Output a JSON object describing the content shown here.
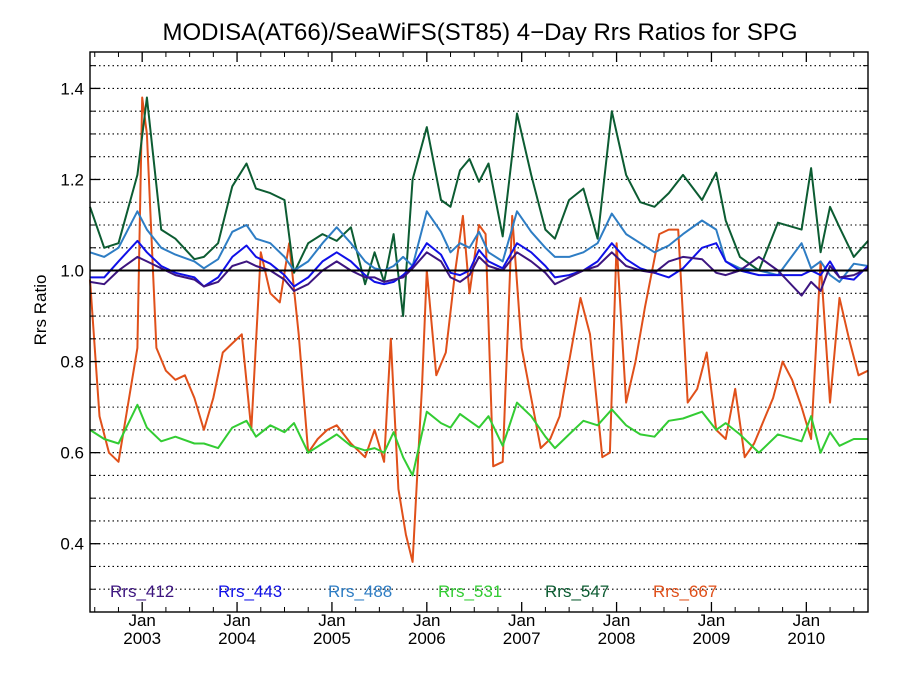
{
  "chart_data": {
    "type": "line",
    "title": "MODISA(AT66)/SeaWiFS(ST85) 4−Day Rrs Ratios for SPG",
    "xlabel": "",
    "ylabel": "Rrs Ratio",
    "xlim": [
      2002.45,
      2010.65
    ],
    "ylim": [
      0.25,
      1.48
    ],
    "y_ticks": [
      0.4,
      0.6,
      0.8,
      1.0,
      1.2,
      1.4
    ],
    "y_tick_labels": [
      "0.4",
      "0.6",
      "0.8",
      "1.0",
      "1.2",
      "1.4"
    ],
    "y_gridlines": [
      0.3,
      0.35,
      0.4,
      0.45,
      0.5,
      0.55,
      0.6,
      0.65,
      0.7,
      0.75,
      0.8,
      0.85,
      0.9,
      0.95,
      1.0,
      1.05,
      1.1,
      1.15,
      1.2,
      1.25,
      1.3,
      1.35,
      1.4,
      1.45
    ],
    "grid": "horizontal dotted",
    "reference_line": 1.0,
    "x_ticks": [
      {
        "x": 2003.0,
        "month": "Jan",
        "year": "2003"
      },
      {
        "x": 2004.0,
        "month": "Jan",
        "year": "2004"
      },
      {
        "x": 2005.0,
        "month": "Jan",
        "year": "2005"
      },
      {
        "x": 2006.0,
        "month": "Jan",
        "year": "2006"
      },
      {
        "x": 2007.0,
        "month": "Jan",
        "year": "2007"
      },
      {
        "x": 2008.0,
        "month": "Jan",
        "year": "2008"
      },
      {
        "x": 2009.0,
        "month": "Jan",
        "year": "2009"
      },
      {
        "x": 2010.0,
        "month": "Jan",
        "year": "2010"
      }
    ],
    "x_minor_ticks": [
      2002.5,
      2002.75,
      2003.25,
      2003.5,
      2003.75,
      2004.25,
      2004.5,
      2004.75,
      2005.25,
      2005.5,
      2005.75,
      2006.25,
      2006.5,
      2006.75,
      2007.25,
      2007.5,
      2007.75,
      2008.25,
      2008.5,
      2008.75,
      2009.25,
      2009.5,
      2009.75,
      2010.25,
      2010.5
    ],
    "legend_position": "bottom",
    "series": [
      {
        "name": "Rrs_412",
        "color": "#3d1580",
        "x": [
          2002.45,
          2002.6,
          2002.75,
          2002.95,
          2003.05,
          2003.2,
          2003.35,
          2003.55,
          2003.65,
          2003.8,
          2003.95,
          2004.1,
          2004.2,
          2004.35,
          2004.5,
          2004.6,
          2004.75,
          2004.9,
          2005.05,
          2005.2,
          2005.35,
          2005.45,
          2005.55,
          2005.65,
          2005.75,
          2005.85,
          2006.0,
          2006.15,
          2006.25,
          2006.35,
          2006.45,
          2006.55,
          2006.65,
          2006.8,
          2006.95,
          2007.1,
          2007.25,
          2007.35,
          2007.5,
          2007.65,
          2007.8,
          2007.95,
          2008.1,
          2008.25,
          2008.4,
          2008.55,
          2008.7,
          2008.9,
          2009.05,
          2009.15,
          2009.3,
          2009.5,
          2009.7,
          2009.95,
          2010.05,
          2010.15,
          2010.25,
          2010.35,
          2010.5,
          2010.65
        ],
        "values": [
          0.975,
          0.97,
          1.0,
          1.03,
          1.02,
          1.005,
          0.99,
          0.98,
          0.965,
          0.975,
          1.01,
          1.02,
          1.01,
          1.0,
          0.98,
          0.955,
          0.97,
          1.0,
          1.02,
          1.0,
          0.985,
          0.985,
          0.975,
          0.98,
          0.985,
          1.005,
          1.04,
          1.02,
          0.985,
          0.975,
          0.99,
          1.03,
          1.01,
          1.0,
          1.04,
          1.02,
          0.995,
          0.97,
          0.985,
          1.0,
          1.01,
          1.04,
          1.01,
          1.0,
          0.995,
          1.02,
          1.03,
          1.025,
          0.995,
          0.99,
          1.0,
          1.03,
          1.0,
          0.945,
          0.975,
          0.955,
          1.01,
          0.985,
          0.99,
          1.005
        ]
      },
      {
        "name": "Rrs_443",
        "color": "#1010e8",
        "x": [
          2002.45,
          2002.6,
          2002.75,
          2002.95,
          2003.05,
          2003.2,
          2003.35,
          2003.55,
          2003.65,
          2003.8,
          2003.95,
          2004.1,
          2004.2,
          2004.35,
          2004.5,
          2004.6,
          2004.75,
          2004.9,
          2005.05,
          2005.2,
          2005.35,
          2005.45,
          2005.55,
          2005.65,
          2005.75,
          2005.85,
          2006.0,
          2006.15,
          2006.25,
          2006.35,
          2006.45,
          2006.55,
          2006.65,
          2006.8,
          2006.95,
          2007.1,
          2007.25,
          2007.35,
          2007.5,
          2007.65,
          2007.8,
          2007.95,
          2008.1,
          2008.25,
          2008.4,
          2008.55,
          2008.7,
          2008.9,
          2009.05,
          2009.15,
          2009.3,
          2009.5,
          2009.7,
          2009.95,
          2010.05,
          2010.15,
          2010.25,
          2010.35,
          2010.5,
          2010.65
        ],
        "values": [
          0.985,
          0.985,
          1.02,
          1.065,
          1.04,
          1.01,
          0.995,
          0.985,
          0.965,
          0.985,
          1.03,
          1.055,
          1.03,
          1.015,
          0.99,
          0.965,
          0.985,
          1.02,
          1.04,
          1.02,
          0.99,
          0.975,
          0.97,
          0.975,
          0.99,
          1.01,
          1.06,
          1.035,
          0.995,
          0.99,
          1.0,
          1.045,
          1.02,
          1.005,
          1.06,
          1.04,
          1.01,
          0.985,
          0.99,
          1.0,
          1.02,
          1.06,
          1.025,
          1.005,
          0.995,
          0.985,
          1.005,
          1.05,
          1.06,
          1.02,
          1.0,
          0.99,
          0.99,
          0.99,
          1.0,
          0.99,
          1.02,
          0.985,
          0.98,
          1.01
        ]
      },
      {
        "name": "Rrs_488",
        "color": "#2e7dc4",
        "x": [
          2002.45,
          2002.6,
          2002.75,
          2002.95,
          2003.05,
          2003.2,
          2003.35,
          2003.55,
          2003.65,
          2003.8,
          2003.95,
          2004.1,
          2004.2,
          2004.35,
          2004.5,
          2004.6,
          2004.75,
          2004.9,
          2005.05,
          2005.2,
          2005.35,
          2005.45,
          2005.55,
          2005.65,
          2005.75,
          2005.85,
          2006.0,
          2006.15,
          2006.25,
          2006.35,
          2006.45,
          2006.55,
          2006.65,
          2006.8,
          2006.95,
          2007.1,
          2007.25,
          2007.35,
          2007.5,
          2007.65,
          2007.8,
          2007.95,
          2008.1,
          2008.25,
          2008.4,
          2008.55,
          2008.7,
          2008.9,
          2009.05,
          2009.15,
          2009.3,
          2009.5,
          2009.7,
          2009.95,
          2010.05,
          2010.15,
          2010.25,
          2010.35,
          2010.5,
          2010.65
        ],
        "values": [
          1.04,
          1.03,
          1.05,
          1.13,
          1.09,
          1.05,
          1.035,
          1.02,
          1.005,
          1.025,
          1.085,
          1.1,
          1.07,
          1.06,
          1.03,
          1.0,
          1.02,
          1.06,
          1.095,
          1.06,
          1.02,
          1.005,
          1.0,
          1.01,
          1.03,
          1.01,
          1.13,
          1.085,
          1.04,
          1.06,
          1.05,
          1.085,
          1.04,
          1.02,
          1.13,
          1.085,
          1.05,
          1.03,
          1.03,
          1.04,
          1.06,
          1.125,
          1.08,
          1.06,
          1.04,
          1.055,
          1.08,
          1.11,
          1.09,
          1.02,
          1.005,
          1.0,
          0.99,
          1.06,
          1.005,
          1.02,
          0.99,
          0.975,
          1.015,
          1.01
        ]
      },
      {
        "name": "Rrs_531",
        "color": "#33cc33",
        "x": [
          2002.45,
          2002.6,
          2002.75,
          2002.95,
          2003.05,
          2003.2,
          2003.35,
          2003.55,
          2003.65,
          2003.8,
          2003.95,
          2004.1,
          2004.2,
          2004.35,
          2004.5,
          2004.6,
          2004.75,
          2004.9,
          2005.05,
          2005.2,
          2005.35,
          2005.45,
          2005.55,
          2005.65,
          2005.75,
          2005.85,
          2006.0,
          2006.15,
          2006.25,
          2006.35,
          2006.45,
          2006.55,
          2006.65,
          2006.8,
          2006.95,
          2007.1,
          2007.25,
          2007.35,
          2007.5,
          2007.65,
          2007.8,
          2007.95,
          2008.1,
          2008.25,
          2008.4,
          2008.55,
          2008.7,
          2008.9,
          2009.05,
          2009.15,
          2009.3,
          2009.5,
          2009.7,
          2009.95,
          2010.05,
          2010.15,
          2010.25,
          2010.35,
          2010.5,
          2010.65
        ],
        "values": [
          0.65,
          0.63,
          0.62,
          0.705,
          0.655,
          0.625,
          0.635,
          0.62,
          0.62,
          0.61,
          0.655,
          0.67,
          0.635,
          0.66,
          0.645,
          0.665,
          0.6,
          0.62,
          0.64,
          0.615,
          0.605,
          0.61,
          0.6,
          0.645,
          0.59,
          0.55,
          0.69,
          0.665,
          0.655,
          0.685,
          0.67,
          0.655,
          0.68,
          0.615,
          0.71,
          0.68,
          0.635,
          0.61,
          0.64,
          0.67,
          0.66,
          0.695,
          0.66,
          0.64,
          0.635,
          0.67,
          0.675,
          0.69,
          0.65,
          0.665,
          0.64,
          0.6,
          0.64,
          0.625,
          0.68,
          0.6,
          0.645,
          0.615,
          0.63,
          0.63
        ]
      },
      {
        "name": "Rrs_547",
        "color": "#0c5c32",
        "x": [
          2002.45,
          2002.6,
          2002.75,
          2002.95,
          2003.05,
          2003.2,
          2003.35,
          2003.55,
          2003.65,
          2003.8,
          2003.95,
          2004.1,
          2004.2,
          2004.35,
          2004.5,
          2004.6,
          2004.75,
          2004.9,
          2005.05,
          2005.2,
          2005.35,
          2005.45,
          2005.55,
          2005.65,
          2005.75,
          2005.85,
          2006.0,
          2006.15,
          2006.25,
          2006.35,
          2006.45,
          2006.55,
          2006.65,
          2006.8,
          2006.95,
          2007.1,
          2007.25,
          2007.35,
          2007.5,
          2007.65,
          2007.8,
          2007.95,
          2008.1,
          2008.25,
          2008.4,
          2008.55,
          2008.7,
          2008.9,
          2009.05,
          2009.15,
          2009.3,
          2009.5,
          2009.7,
          2009.95,
          2010.05,
          2010.15,
          2010.25,
          2010.35,
          2010.5,
          2010.65
        ],
        "values": [
          1.14,
          1.05,
          1.06,
          1.21,
          1.38,
          1.09,
          1.07,
          1.025,
          1.03,
          1.06,
          1.185,
          1.235,
          1.18,
          1.17,
          1.155,
          0.995,
          1.06,
          1.08,
          1.065,
          1.095,
          0.97,
          1.04,
          0.975,
          1.08,
          0.9,
          1.2,
          1.315,
          1.155,
          1.14,
          1.22,
          1.245,
          1.195,
          1.235,
          1.075,
          1.345,
          1.21,
          1.09,
          1.07,
          1.155,
          1.18,
          1.07,
          1.35,
          1.21,
          1.15,
          1.14,
          1.17,
          1.21,
          1.155,
          1.215,
          1.11,
          1.03,
          1.0,
          1.105,
          1.09,
          1.225,
          1.04,
          1.14,
          1.095,
          1.03,
          1.065
        ]
      },
      {
        "name": "Rrs_667",
        "color": "#e0501a",
        "x": [
          2002.45,
          2002.55,
          2002.65,
          2002.75,
          2002.95,
          2003.0,
          2003.05,
          2003.15,
          2003.25,
          2003.35,
          2003.45,
          2003.55,
          2003.65,
          2003.75,
          2003.85,
          2003.95,
          2004.05,
          2004.15,
          2004.25,
          2004.35,
          2004.45,
          2004.55,
          2004.65,
          2004.75,
          2004.85,
          2004.95,
          2005.05,
          2005.2,
          2005.35,
          2005.45,
          2005.55,
          2005.62,
          2005.7,
          2005.78,
          2005.85,
          2005.95,
          2006.0,
          2006.1,
          2006.2,
          2006.3,
          2006.38,
          2006.45,
          2006.55,
          2006.62,
          2006.7,
          2006.8,
          2006.9,
          2007.0,
          2007.1,
          2007.2,
          2007.3,
          2007.4,
          2007.5,
          2007.62,
          2007.72,
          2007.85,
          2007.93,
          2008.0,
          2008.1,
          2008.2,
          2008.3,
          2008.45,
          2008.55,
          2008.65,
          2008.75,
          2008.85,
          2008.95,
          2009.05,
          2009.15,
          2009.25,
          2009.35,
          2009.45,
          2009.55,
          2009.65,
          2009.75,
          2009.85,
          2009.95,
          2010.05,
          2010.15,
          2010.25,
          2010.35,
          2010.45,
          2010.55,
          2010.65
        ],
        "values": [
          0.98,
          0.68,
          0.6,
          0.58,
          0.83,
          1.38,
          1.3,
          0.83,
          0.78,
          0.76,
          0.77,
          0.72,
          0.65,
          0.72,
          0.82,
          0.84,
          0.86,
          0.65,
          1.04,
          0.95,
          0.93,
          1.06,
          0.86,
          0.6,
          0.63,
          0.65,
          0.66,
          0.62,
          0.59,
          0.65,
          0.58,
          0.85,
          0.52,
          0.42,
          0.36,
          0.75,
          1.0,
          0.77,
          0.82,
          1.0,
          1.12,
          0.95,
          1.1,
          1.08,
          0.57,
          0.58,
          1.12,
          0.83,
          0.72,
          0.61,
          0.63,
          0.68,
          0.8,
          0.94,
          0.86,
          0.59,
          0.6,
          1.06,
          0.71,
          0.8,
          0.92,
          1.08,
          1.09,
          1.09,
          0.71,
          0.74,
          0.82,
          0.65,
          0.63,
          0.74,
          0.59,
          0.62,
          0.67,
          0.72,
          0.8,
          0.76,
          0.7,
          0.63,
          1.02,
          0.71,
          0.94,
          0.85,
          0.77,
          0.78
        ]
      }
    ]
  }
}
